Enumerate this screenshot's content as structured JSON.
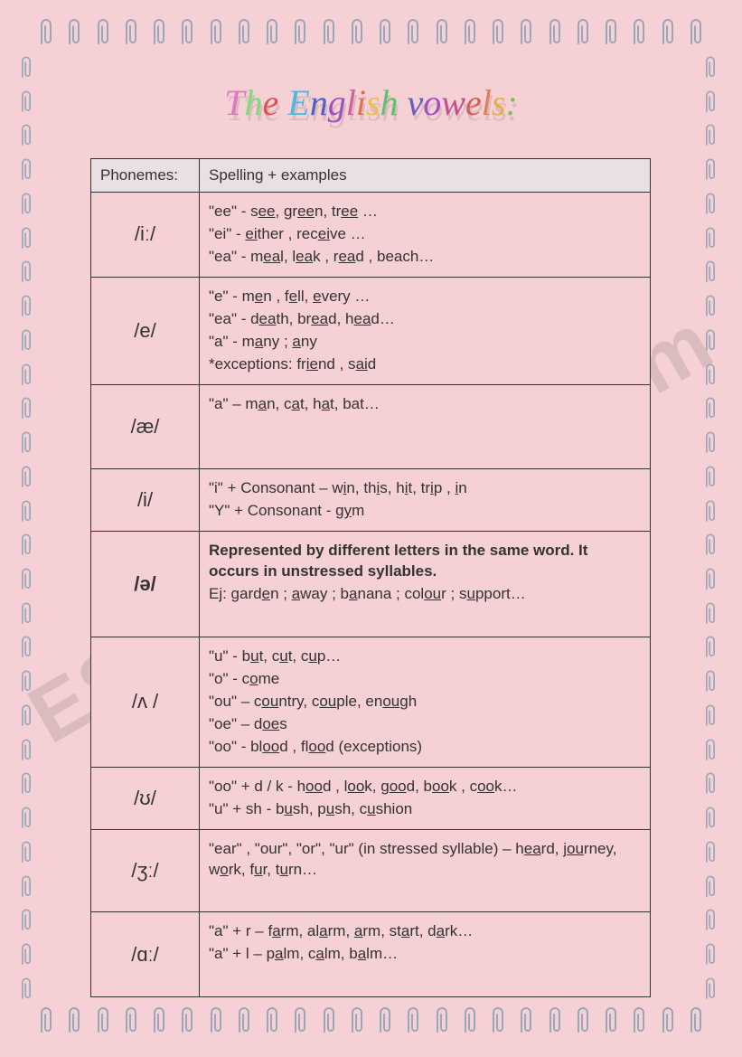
{
  "title_text": "The English vowels:",
  "title_colors": [
    "#d97bbf",
    "#7edb7e",
    "#e05050",
    "#e8c34a",
    "#4db8e0",
    "#5060c8",
    "#a050c0",
    "#d060a0",
    "#e07050",
    "#e8c34a",
    "#60c070",
    "#4090d0",
    "#6060c0",
    "#a050c0",
    "#c05090",
    "#d06060",
    "#e08050",
    "#e0b050",
    "#80c060"
  ],
  "watermark": "ESLPrintables.com",
  "columns": [
    "Phonemes:",
    "Spelling + examples"
  ],
  "rows": [
    {
      "phoneme": "/iː/",
      "bold": false,
      "lines": [
        "\"ee\"  - s<u>ee</u>, gr<u>ee</u>n, tr<u>ee</u> …",
        "\"ei\"  - <u>ei</u>ther , rec<u>ei</u>ve …",
        "\"ea\"  - m<u>ea</u>l, l<u>ea</u>k , r<u>ea</u>d , beach…"
      ]
    },
    {
      "phoneme": "/e/",
      "bold": false,
      "lines": [
        "\"e\"  - m<u>e</u>n , f<u>e</u>ll, <u>e</u>very …",
        "\"ea\"  - d<u>ea</u>th, br<u>ea</u>d, h<u>ea</u>d…",
        "\"a\"  - m<u>a</u>ny ; <u>a</u>ny",
        "*exceptions:  fr<u>ie</u>nd , s<u>ai</u>d"
      ]
    },
    {
      "phoneme": "/æ/",
      "bold": false,
      "lines": [
        "\"a\" – m<u>a</u>n, c<u>a</u>t, h<u>a</u>t, bat…",
        "&nbsp;",
        "&nbsp;"
      ]
    },
    {
      "phoneme": "/i/",
      "bold": false,
      "lines": [
        "\"i\" + Consonant – w<u>i</u>n, th<u>i</u>s, h<u>i</u>t, tr<u>i</u>p , <u>i</u>n",
        "\"Y\" + Consonant - g<u>y</u>m"
      ]
    },
    {
      "phoneme": "/ə/",
      "bold": true,
      "lines": [
        "<span class=\"bold\">Represented by different letters in the same word. It occurs in unstressed syllables.</span>",
        "Ej: gard<u>e</u>n ; <u>a</u>way ;  b<u>a</u>nana ;  col<u>ou</u>r ; s<u>u</u>pport…",
        "&nbsp;"
      ]
    },
    {
      "phoneme": "/ʌ /",
      "bold": false,
      "lines": [
        "\"u\"  - b<u>u</u>t, c<u>u</u>t, c<u>u</u>p…",
        "\"o\"  - c<u>o</u>me",
        "\"ou\" – c<u>ou</u>ntry, c<u>ou</u>ple, en<u>ou</u>gh",
        "\"oe\" – d<u>oe</u>s",
        "\"oo\"  - bl<u>oo</u>d , fl<u>oo</u>d (exceptions)"
      ]
    },
    {
      "phoneme": "/ʊ/",
      "bold": false,
      "lines": [
        "\"oo\" + d / k  - h<u>oo</u>d , l<u>oo</u>k, g<u>oo</u>d, b<u>oo</u>k , c<u>oo</u>k…",
        "\"u\" + sh  - b<u>u</u>sh, p<u>u</u>sh, c<u>u</u>shion"
      ]
    },
    {
      "phoneme": "/ʒː/",
      "bold": false,
      "lines": [
        "\"ear\" , \"our\", \"or\", \"ur\" (in stressed syllable) – h<u>ea</u>rd, j<u>ou</u>rney, w<u>o</u>rk, f<u>u</u>r, t<u>u</u>rn…",
        "&nbsp;"
      ]
    },
    {
      "phoneme": "/ɑː/",
      "bold": false,
      "lines": [
        "\"a\" + r – f<u>a</u>rm, al<u>a</u>rm, <u>a</u>rm, st<u>a</u>rt, d<u>a</u>rk…",
        "\"a\" + l –  p<u>a</u>lm, c<u>a</u>lm, b<u>a</u>lm…",
        "&nbsp;"
      ]
    }
  ],
  "clip_counts": {
    "horizontal": 24,
    "vertical": 28
  },
  "clip_color": "#9aa7ba"
}
